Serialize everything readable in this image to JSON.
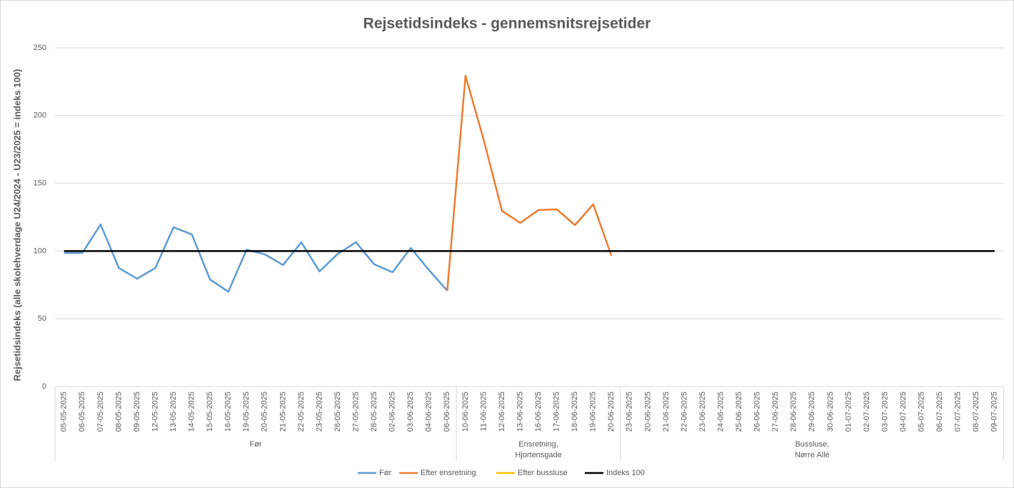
{
  "chart_data": {
    "type": "line",
    "title": "Rejsetidsindeks - gennemsnitsrejsetider",
    "y_label": "Rejsetidsindeks (alle skolehverdage U24/2024 - U23/2025 = indeks 100)",
    "categories": [
      "05-05-2025",
      "06-05-2025",
      "07-05-2025",
      "08-05-2025",
      "09-05-2025",
      "12-05-2025",
      "13-05-2025",
      "14-05-2025",
      "15-05-2025",
      "16-05-2025",
      "19-05-2025",
      "20-05-2025",
      "21-05-2025",
      "22-05-2025",
      "23-05-2025",
      "26-05-2025",
      "27-05-2025",
      "28-05-2025",
      "02-06-2025",
      "03-06-2025",
      "04-06-2025",
      "06-06-2025",
      "10-06-2025",
      "11-06-2025",
      "12-06-2025",
      "13-06-2025",
      "16-06-2025",
      "17-06-2025",
      "18-06-2025",
      "19-06-2025",
      "20-06-2025",
      "23-06-2025",
      "20-06-2025",
      "21-06-2025",
      "22-06-2025",
      "23-06-2025",
      "24-06-2025",
      "25-06-2025",
      "26-06-2025",
      "27-06-2025",
      "28-06-2025",
      "29-06-2025",
      "30-06-2025",
      "01-07-2025",
      "02-07-2025",
      "03-07-2025",
      "04-07-2025",
      "05-07-2025",
      "06-07-2025",
      "07-07-2025",
      "08-07-2025",
      "09-07-2025"
    ],
    "category_groups": [
      {
        "label": "Før",
        "count": 22
      },
      {
        "label": "Ensretning,\nHjortensgade",
        "count": 9
      },
      {
        "label": "Bussluse,\nNørre Allé",
        "count": 21
      }
    ],
    "series": [
      {
        "name": "Før",
        "color": "#5b9bd5",
        "values": [
          98.6,
          98.6,
          119.7,
          87.5,
          79.6,
          87.5,
          117.6,
          112.3,
          79,
          70,
          101,
          97.6,
          89.7,
          106.5,
          85,
          98,
          106.5,
          90.2,
          84.4,
          102.3,
          86,
          70.7,
          null,
          null,
          null,
          null,
          null,
          null,
          null,
          null,
          null,
          null,
          null,
          null,
          null,
          null,
          null,
          null,
          null,
          null,
          null,
          null,
          null,
          null,
          null,
          null,
          null,
          null,
          null,
          null,
          null,
          null
        ]
      },
      {
        "name": "Efter ensretning",
        "color": "#ed7d31",
        "values": [
          null,
          null,
          null,
          null,
          null,
          null,
          null,
          null,
          null,
          null,
          null,
          null,
          null,
          null,
          null,
          null,
          null,
          null,
          null,
          null,
          null,
          70.7,
          229.4,
          182,
          129.7,
          120.8,
          130.3,
          130.8,
          119.2,
          134.5,
          96.5,
          null,
          null,
          null,
          null,
          null,
          null,
          null,
          null,
          null,
          null,
          null,
          null,
          null,
          null,
          null,
          null,
          null,
          null,
          null,
          null,
          null
        ]
      },
      {
        "name": "Efter bussluse",
        "color": "#ffc000",
        "values": [
          null,
          null,
          null,
          null,
          null,
          null,
          null,
          null,
          null,
          null,
          null,
          null,
          null,
          null,
          null,
          null,
          null,
          null,
          null,
          null,
          null,
          null,
          null,
          null,
          null,
          null,
          null,
          null,
          null,
          null,
          null,
          null,
          null,
          null,
          null,
          null,
          null,
          null,
          null,
          null,
          null,
          null,
          null,
          null,
          null,
          null,
          null,
          null,
          null,
          null,
          null,
          null
        ]
      },
      {
        "name": "Indeks 100",
        "color": "#000000",
        "values": [
          100,
          100,
          100,
          100,
          100,
          100,
          100,
          100,
          100,
          100,
          100,
          100,
          100,
          100,
          100,
          100,
          100,
          100,
          100,
          100,
          100,
          100,
          100,
          100,
          100,
          100,
          100,
          100,
          100,
          100,
          100,
          100,
          100,
          100,
          100,
          100,
          100,
          100,
          100,
          100,
          100,
          100,
          100,
          100,
          100,
          100,
          100,
          100,
          100,
          100,
          100,
          100
        ]
      }
    ],
    "ylim": [
      0,
      250
    ],
    "yticks": [
      0,
      50,
      100,
      150,
      200,
      250
    ],
    "grid": true,
    "legend": "bottom"
  }
}
